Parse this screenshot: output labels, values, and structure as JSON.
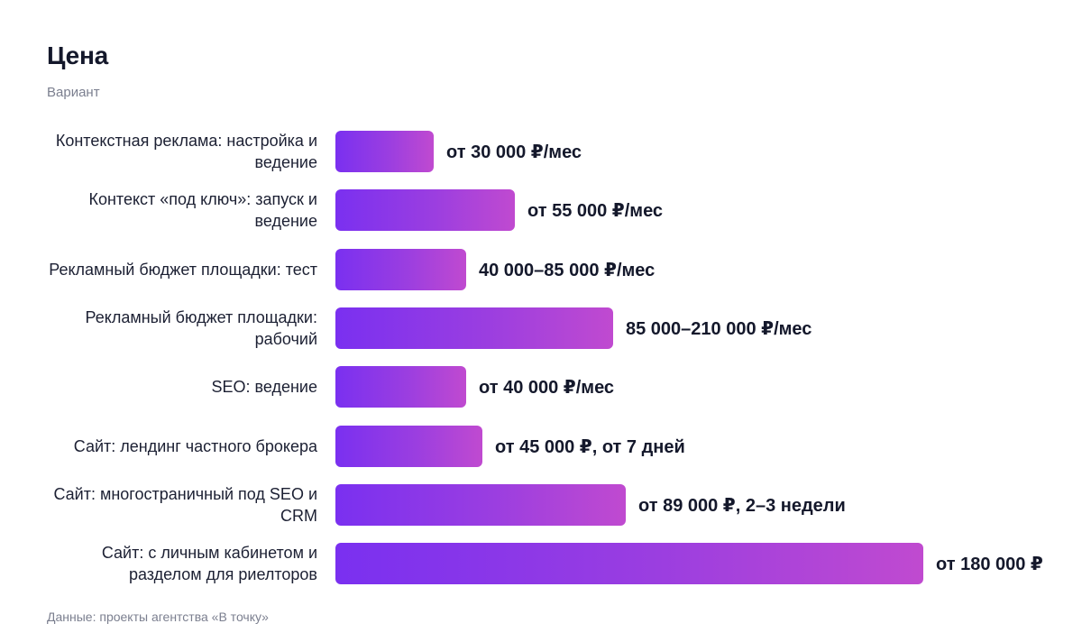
{
  "chart_data": {
    "type": "bar",
    "orientation": "horizontal",
    "title": "Цена",
    "subtitle": "Вариант",
    "footnote": "Данные: проекты агентства «В точку»",
    "categories": [
      "Контекстная реклама: настройка и ведение",
      "Контекст «под ключ»: запуск и ведение",
      "Рекламный бюджет площадки: тест",
      "Рекламный бюджет площадки: рабочий",
      "SEO: ведение",
      "Сайт: лендинг частного брокера",
      "Сайт: многостраничный под SEO и CRM",
      "Сайт: с личным кабинетом и разделом для риелторов"
    ],
    "values": [
      30000,
      55000,
      40000,
      85000,
      40000,
      45000,
      89000,
      180000
    ],
    "value_labels": [
      "от 30 000 ₽/мес",
      "от 55 000 ₽/мес",
      "40 000–85 000 ₽/мес",
      "85 000–210 000 ₽/мес",
      "от 40 000 ₽/мес",
      "от 45 000 ₽, от 7 дней",
      "от 89 000 ₽, 2–3 недели",
      "от 180 000 ₽"
    ],
    "xlim": [
      0,
      180000
    ],
    "grid": false,
    "legend": "none",
    "bar_gradient": [
      "#7a30f0",
      "#c04ad0"
    ]
  }
}
